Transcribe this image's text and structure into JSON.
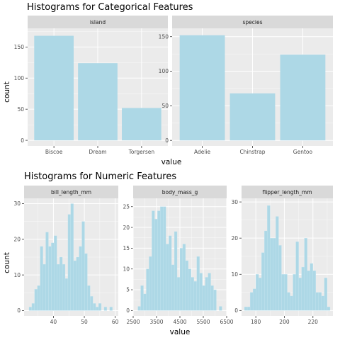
{
  "titles": {
    "categorical": "Histograms for Categorical Features",
    "numeric": "Histograms for Numeric Features"
  },
  "labels": {
    "categorical_x": "value",
    "categorical_y": "count",
    "numeric_x": "value",
    "numeric_y": "count"
  },
  "colors": {
    "panel": "#EBEBEB",
    "strip": "#D9D9D9",
    "grid_major": "#FFFFFF",
    "bar_fill": "#ADD8E6"
  },
  "chart_data": [
    {
      "type": "bar",
      "facet": "island",
      "categories": [
        "Biscoe",
        "Dream",
        "Torgersen"
      ],
      "values": [
        168,
        124,
        52
      ],
      "ylim": [
        -9,
        180
      ],
      "yticks": [
        0,
        50,
        100,
        150
      ],
      "ytick_labels": [
        "0",
        "50",
        "100",
        "150"
      ]
    },
    {
      "type": "bar",
      "facet": "species",
      "categories": [
        "Adelie",
        "Chinstrap",
        "Gentoo"
      ],
      "values": [
        152,
        68,
        124
      ],
      "ylim": [
        -8,
        162
      ],
      "yticks": [
        0,
        50,
        100,
        150
      ],
      "ytick_labels": [
        "0",
        "50",
        "100",
        "150"
      ]
    },
    {
      "type": "histogram",
      "facet": "bill_length_mm",
      "bin_start": 32.1,
      "bin_width": 0.9,
      "values": [
        1,
        2,
        6,
        7,
        18,
        13,
        22,
        18,
        19,
        21,
        13,
        15,
        13,
        9,
        27,
        30,
        14,
        15,
        18,
        25,
        16,
        7,
        4,
        2,
        1,
        2,
        0,
        1,
        0,
        1
      ],
      "xlim": [
        30.5,
        61
      ],
      "ylim": [
        -1.5,
        31.5
      ],
      "xticks": [
        40,
        50,
        60
      ],
      "xtick_labels": [
        "40",
        "50",
        "60"
      ],
      "yticks": [
        0,
        10,
        20,
        30
      ],
      "ytick_labels": [
        "0",
        "10",
        "20",
        "30"
      ]
    },
    {
      "type": "histogram",
      "facet": "body_mass_g",
      "bin_start": 2700,
      "bin_width": 120,
      "values": [
        1,
        6,
        4,
        10,
        13,
        24,
        22,
        24,
        25,
        25,
        16,
        18,
        11,
        19,
        8,
        15,
        16,
        12,
        10,
        8,
        7,
        13,
        9,
        6,
        8,
        9,
        6,
        5,
        0,
        1
      ],
      "xlim": [
        2500,
        6500
      ],
      "ylim": [
        -1.3,
        27
      ],
      "xticks": [
        2500,
        3500,
        4500,
        5500,
        6500
      ],
      "xtick_labels": [
        "2500",
        "3500",
        "4500",
        "5500",
        "6500"
      ],
      "minor_xticks": [
        3000,
        4000,
        5000,
        6000
      ],
      "yticks": [
        0,
        5,
        10,
        15,
        20,
        25
      ],
      "ytick_labels": [
        "0",
        "5",
        "10",
        "15",
        "20",
        "25"
      ]
    },
    {
      "type": "histogram",
      "facet": "flipper_length_mm",
      "bin_start": 172,
      "bin_width": 2,
      "values": [
        1,
        1,
        5,
        6,
        10,
        9,
        16,
        22,
        29,
        20,
        20,
        26,
        18,
        10,
        10,
        5,
        4,
        10,
        19,
        9,
        12,
        20,
        11,
        13,
        11,
        5,
        5,
        4,
        9,
        1
      ],
      "xlim": [
        170,
        234
      ],
      "ylim": [
        -1.5,
        31
      ],
      "xticks": [
        180,
        200,
        220
      ],
      "xtick_labels": [
        "180",
        "200",
        "220"
      ],
      "yticks": [
        0,
        10,
        20,
        30
      ],
      "ytick_labels": [
        "0",
        "10",
        "20",
        "30"
      ]
    }
  ]
}
